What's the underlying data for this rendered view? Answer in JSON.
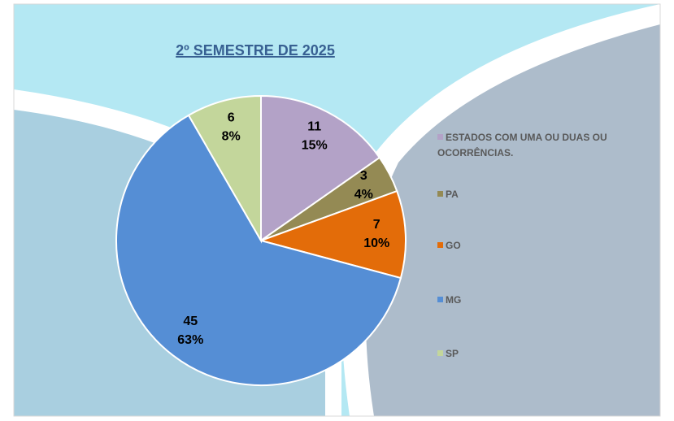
{
  "chart_data": {
    "type": "pie",
    "title": "2º SEMESTRE DE 2025",
    "categories": [
      "ESTADOS  COM UMA OU DUAS OU OCORRÊNCIAS.",
      "PA",
      "GO",
      "MG",
      "SP"
    ],
    "values": [
      11,
      3,
      7,
      45,
      6
    ],
    "percentages": [
      "15%",
      "4%",
      "10%",
      "63%",
      "8%"
    ],
    "colors": [
      "#b3a2c7",
      "#948a54",
      "#e36c09",
      "#558ed5",
      "#c3d69b"
    ],
    "legend": "right"
  }
}
